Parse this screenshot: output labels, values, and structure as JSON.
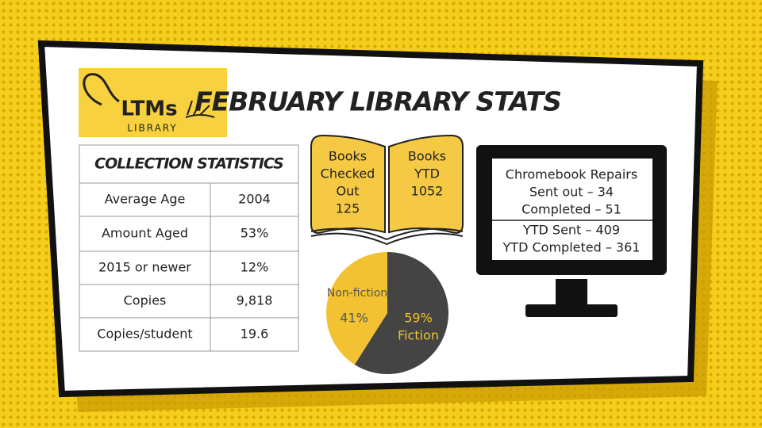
{
  "logo": {
    "name": "LTMs",
    "subtitle": "LIBRARY"
  },
  "title": "FEBRUARY LIBRARY STATS",
  "collection_table": {
    "title": "COLLECTION STATISTICS",
    "rows": [
      [
        "Average Age",
        "2004"
      ],
      [
        "Amount Aged",
        "53%"
      ],
      [
        "2015 or newer",
        "12%"
      ],
      [
        "Copies",
        "9,818"
      ],
      [
        "Copies/student",
        "19.6"
      ]
    ]
  },
  "books": [
    {
      "label_lines": [
        "Books",
        "Checked",
        "Out"
      ],
      "value": "125"
    },
    {
      "label_lines": [
        "Books",
        "YTD"
      ],
      "value": "1052"
    }
  ],
  "pie": {
    "slices": [
      {
        "name": "Fiction",
        "value": 59,
        "value_label": "59%",
        "color": "#444444"
      },
      {
        "name": "Non-fiction",
        "value": 41,
        "value_label": "41%",
        "color": "#f2c232"
      }
    ]
  },
  "chromebook": {
    "title": "Chromebook Repairs",
    "monthly": [
      "Sent out – 34",
      "Completed – 51"
    ],
    "ytd": [
      "YTD Sent – 409",
      "YTD Completed – 361"
    ]
  }
}
